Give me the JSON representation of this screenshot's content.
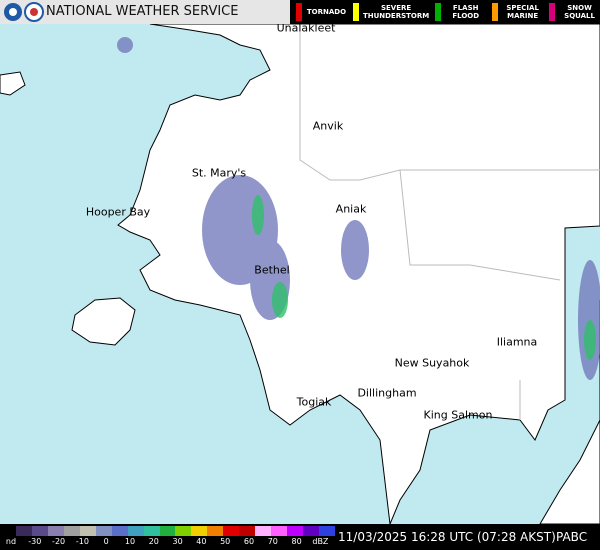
{
  "header": {
    "title": "NATIONAL WEATHER SERVICE",
    "warnings": [
      "TORNADO",
      "SEVERE THUNDERSTORM",
      "FLASH FLOOD",
      "SPECIAL MARINE",
      "SNOW SQUALL"
    ]
  },
  "map": {
    "places": [
      "Unalakleet",
      "Anvik",
      "St. Mary's",
      "Hooper Bay",
      "Aniak",
      "Bethel",
      "New Suyahok",
      "Iliamna",
      "Dillingham",
      "Togiak",
      "King Salmon"
    ]
  },
  "scale": {
    "labels": [
      "nd",
      "-30",
      "-20",
      "-10",
      "0",
      "10",
      "20",
      "30",
      "40",
      "50",
      "60",
      "70",
      "80",
      "dBZ"
    ]
  },
  "footer": {
    "timestamp": "11/03/2025 16:28 UTC (07:28 AKST)",
    "station": "PABC"
  }
}
